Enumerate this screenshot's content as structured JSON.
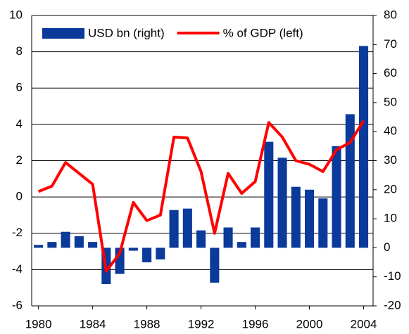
{
  "chart_data": {
    "type": "bar-line",
    "x": [
      1980,
      1981,
      1982,
      1983,
      1984,
      1985,
      1986,
      1987,
      1988,
      1989,
      1990,
      1991,
      1992,
      1993,
      1994,
      1995,
      1996,
      1997,
      1998,
      1999,
      2000,
      2001,
      2002,
      2003,
      2004
    ],
    "xlim": [
      1979.5,
      2004.7
    ],
    "xticks": [
      1980,
      1984,
      1988,
      1992,
      1996,
      2000,
      2004
    ],
    "ylim": [
      -6,
      10
    ],
    "yticks": [
      -6,
      -4,
      -2,
      0,
      2,
      4,
      6,
      8,
      10
    ],
    "y2lim": [
      -20,
      80
    ],
    "y2ticks": [
      -20,
      -10,
      0,
      10,
      20,
      30,
      40,
      50,
      60,
      70,
      80
    ],
    "grid": true,
    "legend": "top",
    "series": [
      {
        "name": "USD bn (right)",
        "type": "bar",
        "axis": "y2",
        "color": "#0a3a9a",
        "values": [
          1,
          2,
          5.5,
          4,
          2,
          -12.5,
          -9,
          -1,
          -5,
          -4,
          13,
          13.5,
          6,
          -12,
          7,
          2,
          7,
          36.5,
          31,
          21,
          20,
          17,
          35,
          46,
          69.5
        ]
      },
      {
        "name": "% of GDP (left)",
        "type": "line",
        "axis": "y",
        "color": "#ff0000",
        "values": [
          0.3,
          0.6,
          1.9,
          1.3,
          0.7,
          -4.1,
          -3.1,
          -0.3,
          -1.3,
          -1.0,
          3.3,
          3.25,
          1.4,
          -2.0,
          1.3,
          0.2,
          0.85,
          4.1,
          3.3,
          2.0,
          1.8,
          1.4,
          2.6,
          3.0,
          4.2
        ]
      }
    ]
  }
}
